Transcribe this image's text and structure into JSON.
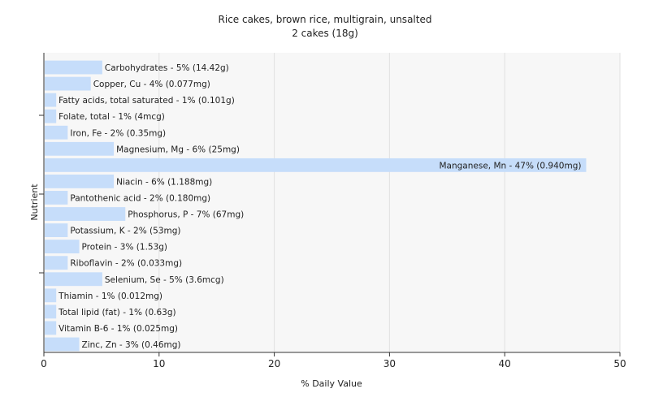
{
  "chart_data": {
    "type": "bar",
    "orientation": "horizontal",
    "title": "Rice cakes, brown rice, multigrain, unsalted",
    "subtitle": "2 cakes (18g)",
    "xlabel": "% Daily Value",
    "ylabel": "Nutrient",
    "xlim": [
      0,
      50
    ],
    "xticks": [
      0,
      10,
      20,
      30,
      40,
      50
    ],
    "grid": true,
    "bar_color": "#c6ddfa",
    "categories": [
      "Carbohydrates",
      "Copper, Cu",
      "Fatty acids, total saturated",
      "Folate, total",
      "Iron, Fe",
      "Magnesium, Mg",
      "Manganese, Mn",
      "Niacin",
      "Pantothenic acid",
      "Phosphorus, P",
      "Potassium, K",
      "Protein",
      "Riboflavin",
      "Selenium, Se",
      "Thiamin",
      "Total lipid (fat)",
      "Vitamin B-6",
      "Zinc, Zn"
    ],
    "values": [
      5,
      4,
      1,
      1,
      2,
      6,
      47,
      6,
      2,
      7,
      2,
      3,
      2,
      5,
      1,
      1,
      1,
      3
    ],
    "labels": [
      "Carbohydrates - 5% (14.42g)",
      "Copper, Cu - 4% (0.077mg)",
      "Fatty acids, total saturated - 1% (0.101g)",
      "Folate, total - 1% (4mcg)",
      "Iron, Fe - 2% (0.35mg)",
      "Magnesium, Mg - 6% (25mg)",
      "Manganese, Mn - 47% (0.940mg)",
      "Niacin - 6% (1.188mg)",
      "Pantothenic acid - 2% (0.180mg)",
      "Phosphorus, P - 7% (67mg)",
      "Potassium, K - 2% (53mg)",
      "Protein - 3% (1.53g)",
      "Riboflavin - 2% (0.033mg)",
      "Selenium, Se - 5% (3.6mcg)",
      "Thiamin - 1% (0.012mg)",
      "Total lipid (fat) - 1% (0.63g)",
      "Vitamin B-6 - 1% (0.025mg)",
      "Zinc, Zn - 3% (0.46mg)"
    ]
  }
}
